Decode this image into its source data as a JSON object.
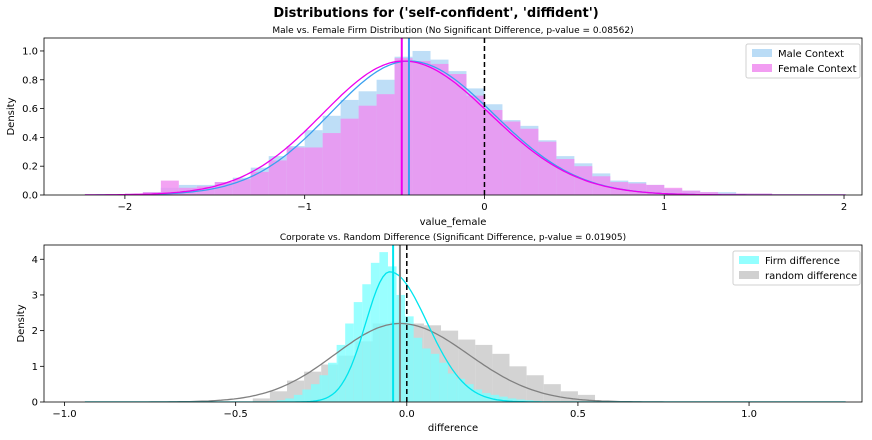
{
  "figure": {
    "suptitle": "Distributions for ('self-confident', 'diffident')"
  },
  "chart_data": [
    {
      "type": "histogram+kde",
      "title": "Male vs. Female Firm Distribution (No Significant Difference, p-value = 0.08562)",
      "xlabel": "value_female",
      "ylabel": "Density",
      "xlim": [
        -2.45,
        2.1
      ],
      "ylim": [
        0,
        1.09
      ],
      "xticks": [
        -2,
        -1,
        0,
        1,
        2
      ],
      "xtick_labels": [
        "−2",
        "−1",
        "0",
        "1",
        "2"
      ],
      "yticks": [
        0,
        0.2,
        0.4,
        0.6,
        0.8,
        1.0
      ],
      "ytick_labels": [
        "0.0",
        "0.2",
        "0.4",
        "0.6",
        "0.8",
        "1.0"
      ],
      "bins": {
        "start": -2.3,
        "width": 0.1,
        "count": 42
      },
      "series": [
        {
          "name": "Male Context",
          "hist_color": "#aed6f5",
          "line_color": "#3aa0f0",
          "mean": -0.42,
          "hist": [
            0,
            0,
            0,
            0.01,
            0.02,
            0.05,
            0.07,
            0.07,
            0.09,
            0.12,
            0.19,
            0.27,
            0.34,
            0.45,
            0.55,
            0.66,
            0.72,
            0.8,
            0.96,
            1.0,
            0.94,
            0.86,
            0.74,
            0.63,
            0.52,
            0.48,
            0.38,
            0.27,
            0.22,
            0.15,
            0.1,
            0.09,
            0.07,
            0.04,
            0.03,
            0.02,
            0.02,
            0.01,
            0.01,
            0,
            0,
            0
          ],
          "kde": {
            "mu": -0.42,
            "sigmaL": 0.44,
            "sigmaR": 0.47,
            "peak": 0.93
          }
        },
        {
          "name": "Female Context",
          "hist_color": "#f08cf0",
          "line_color": "#ee00ee",
          "mean": -0.46,
          "hist": [
            0,
            0,
            0,
            0.01,
            0.02,
            0.1,
            0.05,
            0.06,
            0.09,
            0.11,
            0.16,
            0.24,
            0.33,
            0.33,
            0.43,
            0.53,
            0.62,
            0.7,
            0.95,
            0.93,
            0.91,
            0.84,
            0.69,
            0.59,
            0.51,
            0.46,
            0.37,
            0.25,
            0.2,
            0.13,
            0.09,
            0.08,
            0.07,
            0.05,
            0.03,
            0.02,
            0.01,
            0.01,
            0.01,
            0,
            0,
            0
          ],
          "kde": {
            "mu": -0.45,
            "sigmaL": 0.45,
            "sigmaR": 0.48,
            "peak": 0.93
          }
        }
      ],
      "reference_line": 0,
      "legend": "top-right"
    },
    {
      "type": "histogram+kde",
      "title": "Corporate vs. Random Difference (Significant Difference, p-value = 0.01905)",
      "xlabel": "difference",
      "ylabel": "Density",
      "xlim": [
        -1.06,
        1.33
      ],
      "ylim": [
        0,
        4.4
      ],
      "xticks": [
        -1.0,
        -0.5,
        0.0,
        0.5,
        1.0
      ],
      "xtick_labels": [
        "−1.0",
        "−0.5",
        "0.0",
        "0.5",
        "1.0"
      ],
      "yticks": [
        0,
        1,
        2,
        3,
        4
      ],
      "ytick_labels": [
        "0",
        "1",
        "2",
        "3",
        "4"
      ],
      "bins": {
        "start": -0.48,
        "width": 0.025,
        "count": 40
      },
      "series": [
        {
          "name": "random difference",
          "hist_color": "#c8c8c8",
          "line_color": "#808080",
          "mean": -0.02,
          "binwidth": 0.05,
          "binstart": -0.45,
          "hist": [
            0.1,
            0.3,
            0.6,
            0.85,
            1.05,
            1.3,
            1.7,
            2.2,
            2.25,
            2.2,
            2.15,
            2.0,
            1.75,
            1.6,
            1.35,
            1.0,
            0.75,
            0.5,
            0.3,
            0.2
          ],
          "kde": {
            "mu": -0.02,
            "sigmaL": 0.19,
            "sigmaR": 0.2,
            "peak": 2.2
          }
        },
        {
          "name": "Firm difference",
          "hist_color": "#80ffff",
          "line_color": "#00e5ee",
          "mean": -0.04,
          "hist": [
            0,
            0,
            0.01,
            0.02,
            0.05,
            0.1,
            0.2,
            0.35,
            0.5,
            0.75,
            1.1,
            1.6,
            2.2,
            2.8,
            3.3,
            3.9,
            4.2,
            3.8,
            3.0,
            2.4,
            1.8,
            1.5,
            1.35,
            1.1,
            0.8,
            0.65,
            0.5,
            0.35,
            0.25,
            0.2,
            0.15,
            0.1,
            0.07,
            0.05,
            0.03,
            0.02,
            0.01,
            0,
            0,
            0
          ],
          "kde": {
            "mu": -0.05,
            "sigmaL": 0.07,
            "sigmaR": 0.11,
            "peak": 3.65
          }
        }
      ],
      "reference_line": 0,
      "legend": "top-right"
    }
  ]
}
